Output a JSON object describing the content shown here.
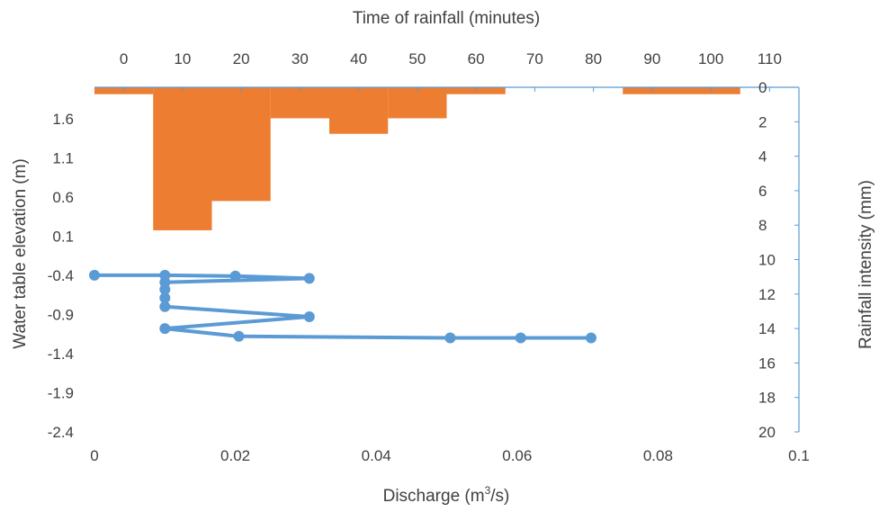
{
  "chart_data": {
    "type": "line",
    "axes": {
      "x_bottom": {
        "label": "Discharge (m",
        "label_sup": "3",
        "label_suffix": "/s)",
        "range": [
          0,
          0.1
        ],
        "ticks": [
          "0",
          "0.02",
          "0.04",
          "0.06",
          "0.08",
          "0.1"
        ]
      },
      "x_top": {
        "label": "Time of rainfall (minutes)",
        "range": [
          -5,
          115
        ],
        "ticks": [
          "0",
          "10",
          "20",
          "30",
          "40",
          "50",
          "60",
          "70",
          "80",
          "90",
          "100",
          "110"
        ]
      },
      "y_left": {
        "label": "Water table elevation (m)",
        "range": [
          -2.4,
          2.0
        ],
        "ticks": [
          "1.6",
          "1.1",
          "0.6",
          "0.1",
          "-0.4",
          "-0.9",
          "-1.4",
          "-1.9",
          "-2.4"
        ]
      },
      "y_right": {
        "label": "Rainfall intensity (mm)",
        "range": [
          0,
          20
        ],
        "reversed": true,
        "ticks": [
          "0",
          "2",
          "4",
          "6",
          "8",
          "10",
          "12",
          "14",
          "16",
          "18",
          "20"
        ]
      }
    },
    "series": [
      {
        "kind": "line",
        "color": "#5b9bd5",
        "points": [
          [
            0,
            -0.4
          ],
          [
            0.01,
            -0.4
          ],
          [
            0.02,
            -0.41
          ],
          [
            0.0305,
            -0.44
          ],
          [
            0.01,
            -0.49
          ],
          [
            0.01,
            -0.58
          ],
          [
            0.01,
            -0.69
          ],
          [
            0.01,
            -0.8
          ],
          [
            0.0305,
            -0.93
          ],
          [
            0.01,
            -1.08
          ],
          [
            0.0205,
            -1.18
          ],
          [
            0.0505,
            -1.2
          ],
          [
            0.0605,
            -1.2
          ],
          [
            0.0705,
            -1.2
          ]
        ]
      },
      {
        "kind": "bar",
        "color": "#ed7d31",
        "bins": [
          {
            "start": -5,
            "end": 5,
            "value": 0.4
          },
          {
            "start": 5,
            "end": 15,
            "value": 8.3
          },
          {
            "start": 15,
            "end": 25,
            "value": 6.6
          },
          {
            "start": 25,
            "end": 35,
            "value": 1.8
          },
          {
            "start": 35,
            "end": 45,
            "value": 2.7
          },
          {
            "start": 45,
            "end": 55,
            "value": 1.8
          },
          {
            "start": 55,
            "end": 65,
            "value": 0.4
          },
          {
            "start": 85,
            "end": 95,
            "value": 0.4
          },
          {
            "start": 95,
            "end": 105,
            "value": 0.4
          }
        ]
      }
    ],
    "colors": {
      "axis": "#5b9bd5",
      "text": "#404040"
    },
    "grid": false,
    "legend": "none"
  }
}
